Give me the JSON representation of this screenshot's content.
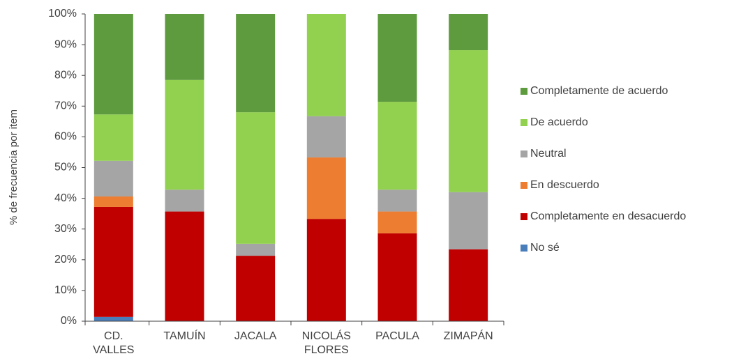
{
  "chart_data": {
    "type": "stacked_bar",
    "ylabel": "% de frecuencia por item",
    "categories": [
      "CD. VALLES",
      "TAMUÍN",
      "JACALA",
      "NICOLÁS FLORES",
      "PACULA",
      "ZIMAPÁN"
    ],
    "series": [
      {
        "name": "No sé",
        "color": "#4a7ebb",
        "values": [
          1.4,
          0,
          0,
          0,
          0,
          0
        ]
      },
      {
        "name": "Completamente en desacuerdo",
        "color": "#c00000",
        "values": [
          35.8,
          35.7,
          21.3,
          33.3,
          28.6,
          23.4
        ]
      },
      {
        "name": "En descuerdo",
        "color": "#ed7d31",
        "values": [
          3.4,
          0,
          0,
          20.0,
          7.1,
          0
        ]
      },
      {
        "name": "Neutral",
        "color": "#a5a5a5",
        "values": [
          11.6,
          7.1,
          3.9,
          13.4,
          7.1,
          18.6
        ]
      },
      {
        "name": "De acuerdo",
        "color": "#92d050",
        "values": [
          15.1,
          35.7,
          42.8,
          33.3,
          28.6,
          46.2
        ]
      },
      {
        "name": "Completamente de acuerdo",
        "color": "#5e9b3e",
        "values": [
          32.7,
          21.5,
          32.0,
          0,
          28.6,
          11.8
        ]
      }
    ],
    "ylim": [
      0,
      100
    ],
    "yticks": [
      {
        "value": 0,
        "label": "0%"
      },
      {
        "value": 10,
        "label": "10%"
      },
      {
        "value": 20,
        "label": "20%"
      },
      {
        "value": 30,
        "label": "30%"
      },
      {
        "value": 40,
        "label": "40%"
      },
      {
        "value": 50,
        "label": "50%"
      },
      {
        "value": 60,
        "label": "60%"
      },
      {
        "value": 70,
        "label": "70%"
      },
      {
        "value": 80,
        "label": "80%"
      },
      {
        "value": 90,
        "label": "90%"
      },
      {
        "value": 100,
        "label": "100%"
      }
    ],
    "legend": "right"
  }
}
